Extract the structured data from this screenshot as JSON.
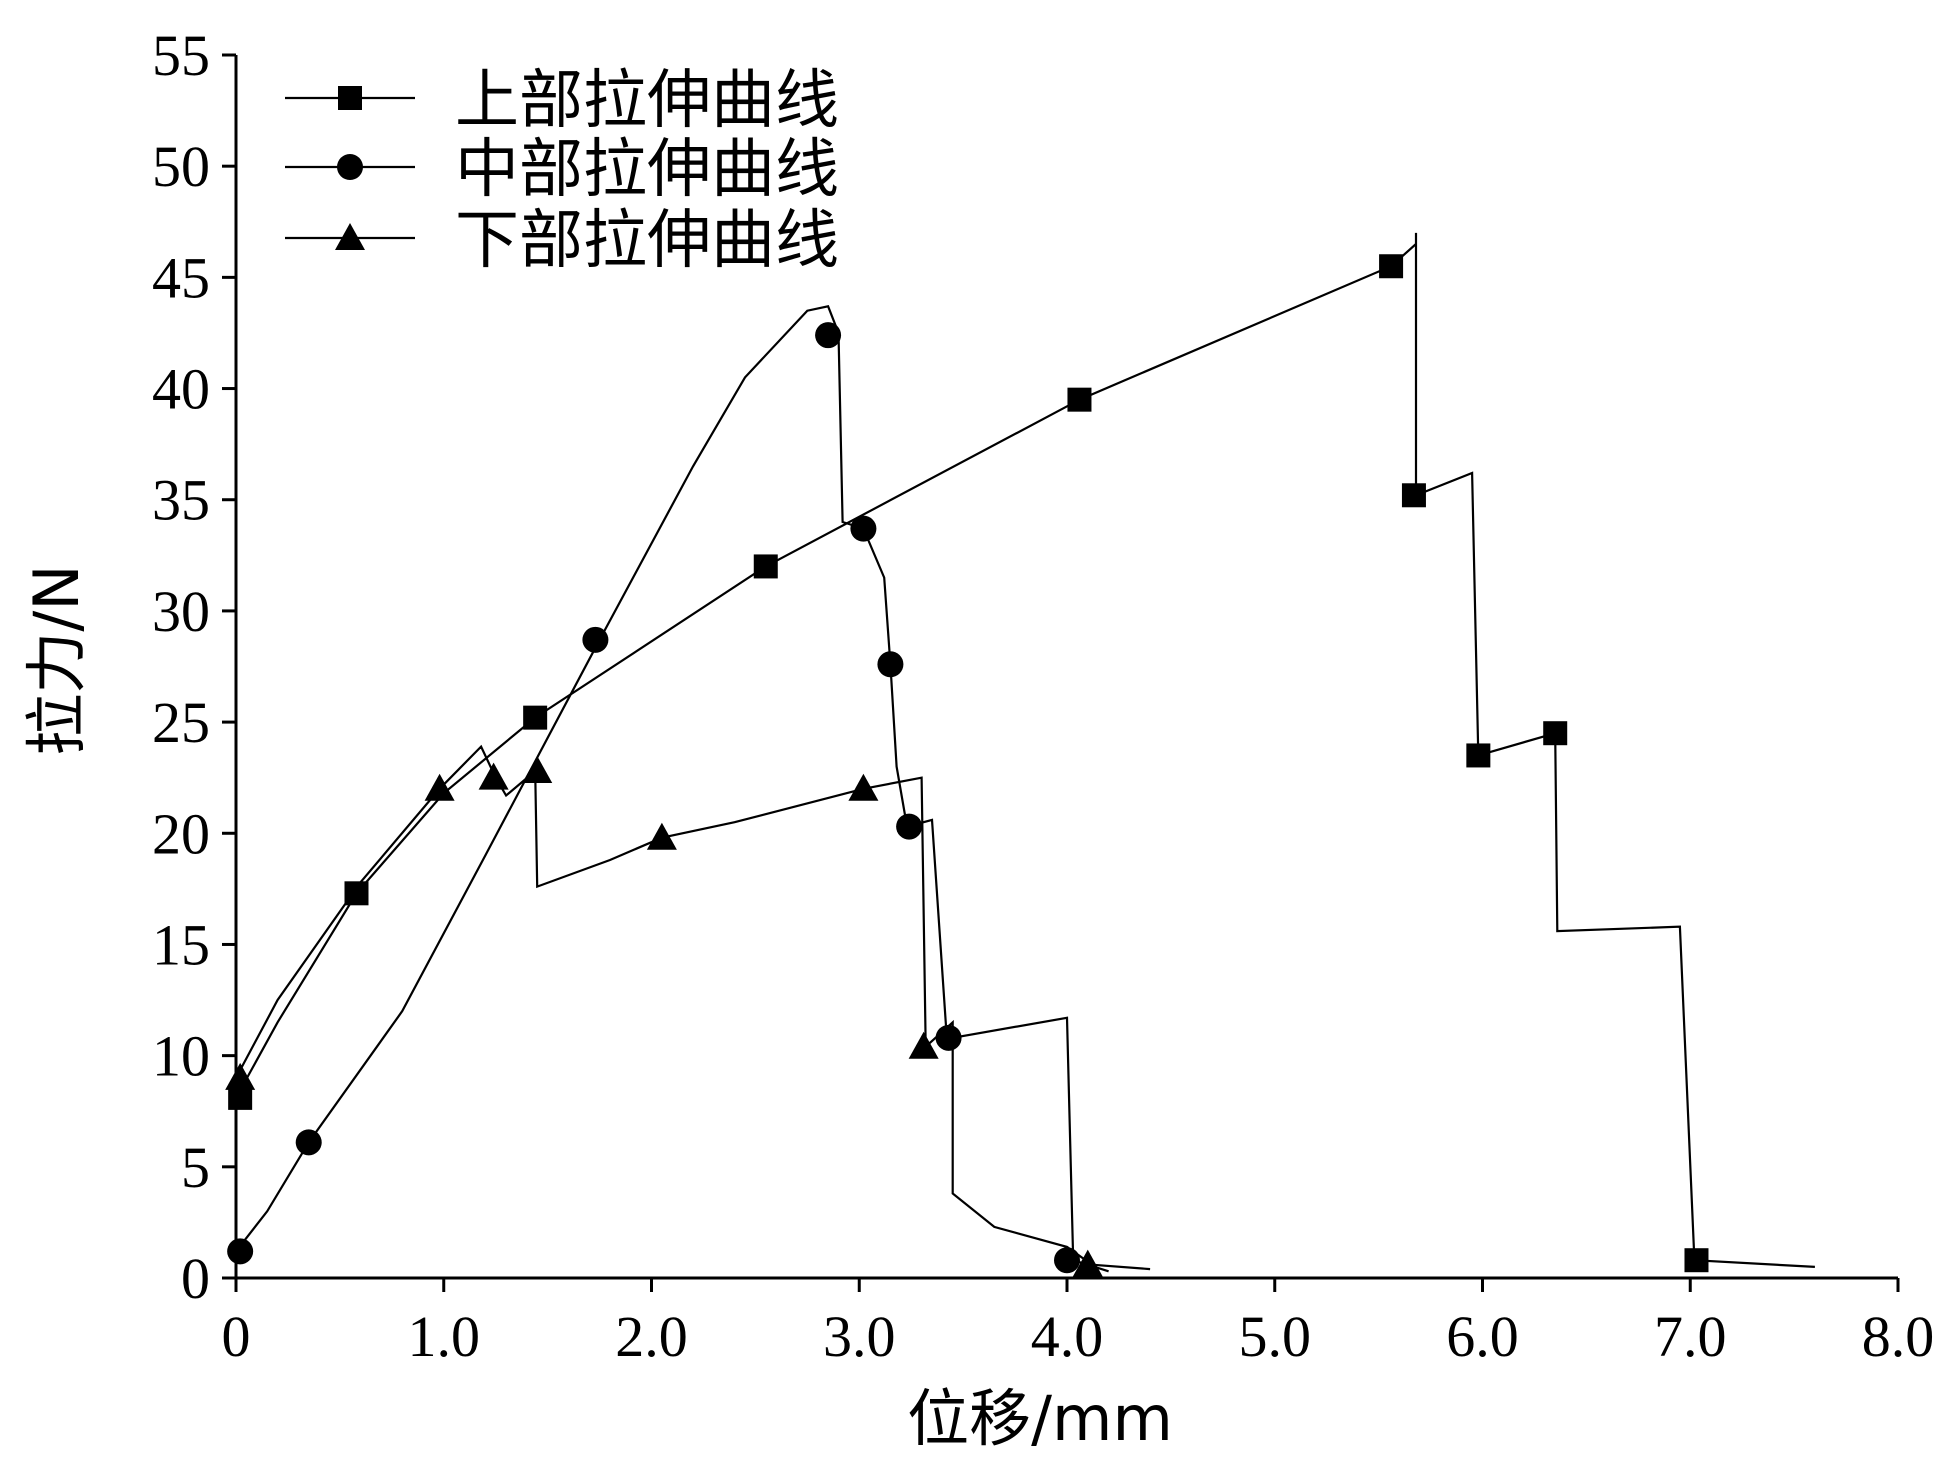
{
  "chart_data": {
    "type": "line",
    "xlabel": "位移/mm",
    "ylabel": "拉力/N",
    "xlim": [
      0,
      8
    ],
    "ylim": [
      0,
      55
    ],
    "xticks": [
      0,
      1,
      2,
      3,
      4,
      5,
      6,
      7,
      8
    ],
    "xtick_labels": [
      "0",
      "1.0",
      "2.0",
      "3.0",
      "4.0",
      "5.0",
      "6.0",
      "7.0",
      "8.0"
    ],
    "yticks": [
      0,
      5,
      10,
      15,
      20,
      25,
      30,
      35,
      40,
      45,
      50,
      55
    ],
    "ytick_labels": [
      "0",
      "5",
      "10",
      "15",
      "20",
      "25",
      "30",
      "35",
      "40",
      "45",
      "50",
      "55"
    ],
    "legend_position": "top-left",
    "series": [
      {
        "name": "上部拉伸曲线",
        "marker": "square",
        "line": [
          [
            0,
            8.1
          ],
          [
            0.2,
            11.5
          ],
          [
            0.58,
            17.3
          ],
          [
            1.0,
            21.8
          ],
          [
            1.44,
            25.2
          ],
          [
            2.55,
            32.0
          ],
          [
            4.06,
            39.5
          ],
          [
            5.56,
            45.5
          ],
          [
            5.68,
            46.5
          ],
          [
            5.68,
            47.0
          ],
          [
            5.68,
            35.2
          ],
          [
            5.95,
            36.2
          ],
          [
            5.98,
            23.5
          ],
          [
            6.35,
            24.5
          ],
          [
            6.36,
            15.6
          ],
          [
            6.95,
            15.8
          ],
          [
            7.02,
            0.8
          ],
          [
            7.6,
            0.5
          ]
        ],
        "markers": [
          [
            0.02,
            8.1
          ],
          [
            0.58,
            17.3
          ],
          [
            1.44,
            25.2
          ],
          [
            2.55,
            32.0
          ],
          [
            4.06,
            39.5
          ],
          [
            5.56,
            45.5
          ],
          [
            5.67,
            35.2
          ],
          [
            5.98,
            23.5
          ],
          [
            6.35,
            24.5
          ],
          [
            7.03,
            0.8
          ]
        ]
      },
      {
        "name": "中部拉伸曲线",
        "marker": "circle",
        "line": [
          [
            0,
            1.2
          ],
          [
            0.15,
            3.0
          ],
          [
            0.35,
            6.1
          ],
          [
            0.8,
            12.0
          ],
          [
            1.2,
            19.0
          ],
          [
            1.75,
            28.7
          ],
          [
            2.2,
            36.5
          ],
          [
            2.45,
            40.5
          ],
          [
            2.75,
            43.5
          ],
          [
            2.85,
            43.7
          ],
          [
            2.9,
            42.5
          ],
          [
            2.92,
            34.0
          ],
          [
            3.02,
            33.7
          ],
          [
            3.12,
            31.5
          ],
          [
            3.15,
            27.6
          ],
          [
            3.18,
            23.0
          ],
          [
            3.23,
            20.3
          ],
          [
            3.35,
            20.6
          ],
          [
            3.42,
            11.0
          ],
          [
            3.45,
            10.8
          ],
          [
            4.0,
            11.7
          ],
          [
            4.03,
            0.8
          ],
          [
            4.2,
            0.3
          ]
        ],
        "markers": [
          [
            0.02,
            1.2
          ],
          [
            0.35,
            6.1
          ],
          [
            1.73,
            28.7
          ],
          [
            2.85,
            42.4
          ],
          [
            3.02,
            33.7
          ],
          [
            3.15,
            27.6
          ],
          [
            3.24,
            20.3
          ],
          [
            3.43,
            10.8
          ],
          [
            4.0,
            0.8
          ]
        ]
      },
      {
        "name": "下部拉伸曲线",
        "marker": "triangle",
        "line": [
          [
            0,
            9.0
          ],
          [
            0.2,
            12.5
          ],
          [
            0.6,
            17.8
          ],
          [
            0.98,
            22.0
          ],
          [
            1.18,
            23.9
          ],
          [
            1.25,
            22.5
          ],
          [
            1.3,
            21.7
          ],
          [
            1.44,
            22.8
          ],
          [
            1.45,
            17.6
          ],
          [
            1.8,
            18.8
          ],
          [
            2.05,
            19.8
          ],
          [
            2.4,
            20.5
          ],
          [
            3.02,
            22.0
          ],
          [
            3.3,
            22.5
          ],
          [
            3.32,
            10.4
          ],
          [
            3.45,
            11.5
          ],
          [
            3.45,
            3.8
          ],
          [
            3.65,
            2.3
          ],
          [
            4.0,
            1.4
          ],
          [
            4.12,
            0.6
          ],
          [
            4.4,
            0.4
          ]
        ],
        "markers": [
          [
            0.02,
            9.0
          ],
          [
            0.98,
            22.0
          ],
          [
            1.24,
            22.5
          ],
          [
            1.45,
            22.8
          ],
          [
            2.05,
            19.8
          ],
          [
            3.02,
            22.0
          ],
          [
            3.31,
            10.4
          ],
          [
            4.1,
            0.6
          ]
        ]
      }
    ]
  }
}
